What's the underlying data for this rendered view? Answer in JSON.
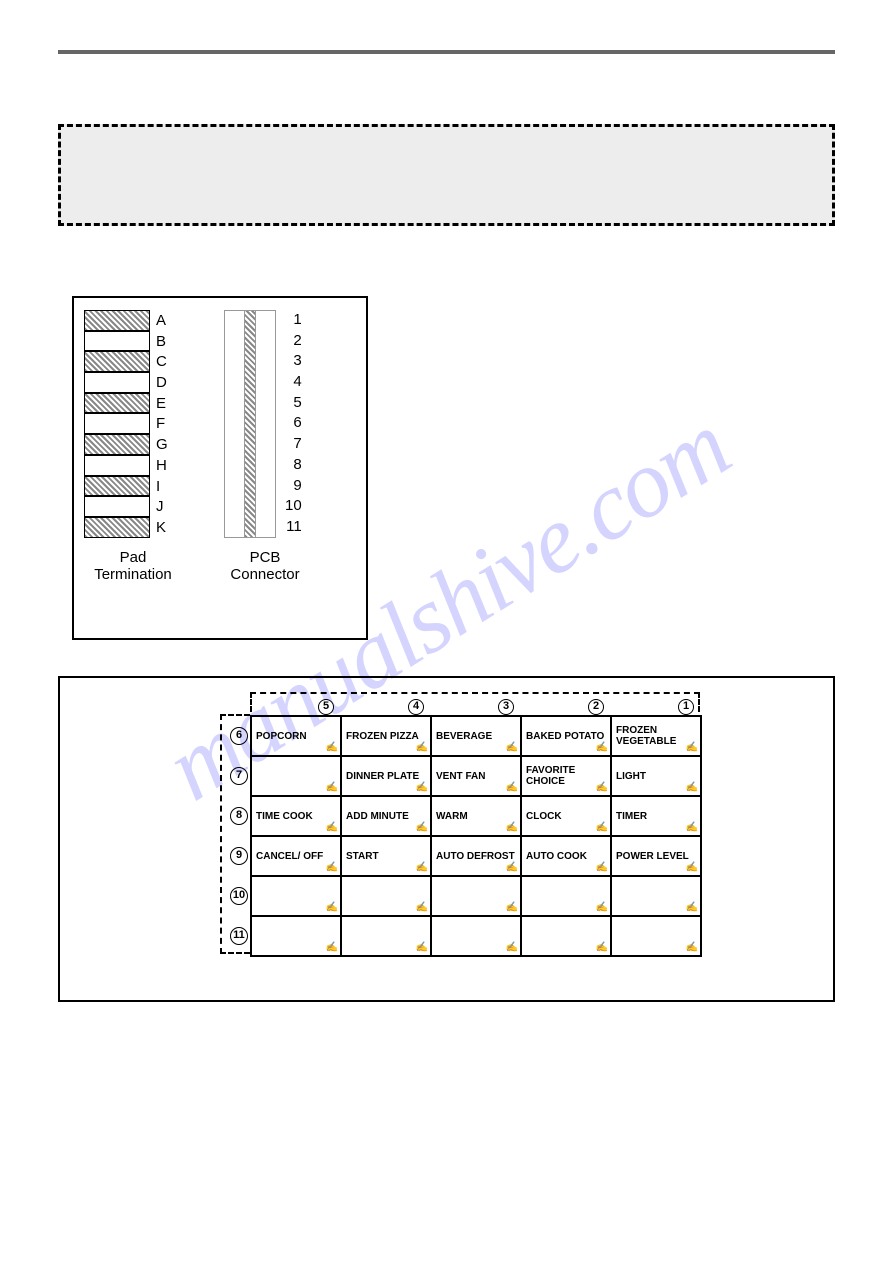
{
  "watermark": "manualshive.com",
  "pad_diagram": {
    "left_labels": [
      "A",
      "B",
      "C",
      "D",
      "E",
      "F",
      "G",
      "H",
      "I",
      "J",
      "K"
    ],
    "right_labels": [
      "1",
      "2",
      "3",
      "4",
      "5",
      "6",
      "7",
      "8",
      "9",
      "10",
      "11"
    ],
    "left_caption": "Pad\nTermination",
    "right_caption": "PCB\nConnector"
  },
  "keytable": {
    "col_nums": [
      "5",
      "4",
      "3",
      "2",
      "1"
    ],
    "row_nums": [
      "6",
      "7",
      "8",
      "9",
      "10",
      "11"
    ],
    "rows": [
      [
        "POPCORN",
        "FROZEN PIZZA",
        "BEVERAGE",
        "BAKED POTATO",
        "FROZEN VEGETABLE"
      ],
      [
        "",
        "DINNER PLATE",
        "VENT FAN",
        "FAVORITE CHOICE",
        "LIGHT"
      ],
      [
        "TIME COOK",
        "ADD MINUTE",
        "WARM",
        "CLOCK",
        "TIMER"
      ],
      [
        "CANCEL/ OFF",
        "START",
        "AUTO DEFROST",
        "AUTO COOK",
        "POWER LEVEL"
      ],
      [
        "",
        "",
        "",
        "",
        ""
      ],
      [
        "",
        "",
        "",
        "",
        ""
      ]
    ]
  }
}
